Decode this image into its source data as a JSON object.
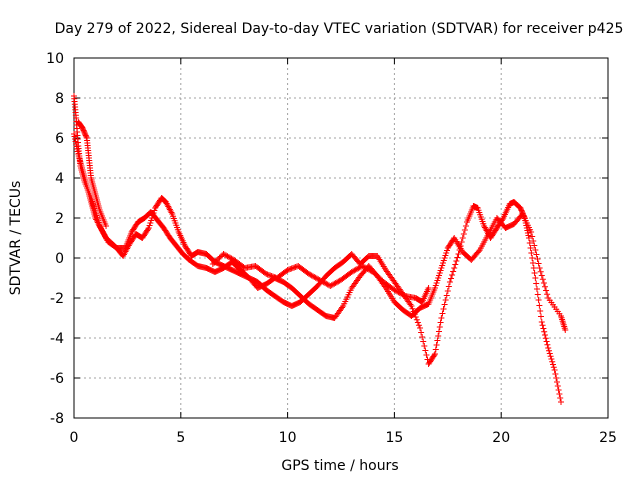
{
  "chart_data": {
    "type": "scatter",
    "title": "Day 279 of 2022, Sidereal Day-to-day VTEC variation (SDTVAR) for receiver p425",
    "xlabel": "GPS time / hours",
    "ylabel": "SDTVAR / TECUs",
    "xlim": [
      0,
      25
    ],
    "ylim": [
      -8,
      10
    ],
    "xticks": [
      0,
      5,
      10,
      15,
      20,
      25
    ],
    "yticks": [
      -8,
      -6,
      -4,
      -2,
      0,
      2,
      4,
      6,
      8,
      10
    ],
    "grid": true,
    "marker": "+",
    "color": "#ff0000",
    "series": [
      {
        "name": "track-a",
        "points": [
          [
            0.0,
            8.1
          ],
          [
            0.1,
            7.0
          ],
          [
            0.2,
            5.6
          ],
          [
            0.3,
            4.6
          ],
          [
            0.5,
            3.8
          ],
          [
            0.8,
            3.0
          ],
          [
            1.0,
            2.3
          ],
          [
            1.2,
            1.6
          ],
          [
            1.5,
            1.0
          ],
          [
            1.8,
            0.7
          ],
          [
            2.0,
            0.5
          ],
          [
            2.3,
            0.1
          ],
          [
            2.6,
            0.7
          ],
          [
            2.9,
            1.2
          ],
          [
            3.2,
            1.0
          ],
          [
            3.5,
            1.5
          ],
          [
            3.8,
            2.5
          ],
          [
            4.1,
            3.0
          ],
          [
            4.3,
            2.8
          ],
          [
            4.6,
            2.2
          ],
          [
            4.9,
            1.3
          ],
          [
            5.2,
            0.6
          ],
          [
            5.5,
            0.1
          ],
          [
            5.8,
            0.3
          ],
          [
            6.2,
            0.2
          ],
          [
            6.6,
            -0.2
          ],
          [
            7.0,
            -0.4
          ],
          [
            7.4,
            -0.6
          ],
          [
            7.8,
            -0.8
          ],
          [
            8.2,
            -1.0
          ],
          [
            8.6,
            -1.2
          ],
          [
            9.0,
            -1.6
          ],
          [
            9.4,
            -1.9
          ],
          [
            9.8,
            -2.2
          ],
          [
            10.2,
            -2.4
          ],
          [
            10.6,
            -2.2
          ],
          [
            11.0,
            -1.8
          ],
          [
            11.4,
            -1.4
          ],
          [
            11.8,
            -0.9
          ],
          [
            12.2,
            -0.5
          ],
          [
            12.6,
            -0.2
          ],
          [
            13.0,
            0.2
          ],
          [
            13.4,
            -0.3
          ],
          [
            13.8,
            0.1
          ],
          [
            14.2,
            0.1
          ],
          [
            14.6,
            -0.6
          ],
          [
            15.0,
            -1.2
          ],
          [
            15.4,
            -1.8
          ],
          [
            15.8,
            -2.4
          ],
          [
            16.2,
            -3.5
          ],
          [
            16.6,
            -5.3
          ],
          [
            16.9,
            -4.8
          ],
          [
            17.2,
            -3.0
          ],
          [
            17.6,
            -1.2
          ],
          [
            18.0,
            0.2
          ],
          [
            18.4,
            1.8
          ],
          [
            18.7,
            2.6
          ],
          [
            18.9,
            2.5
          ],
          [
            19.2,
            1.6
          ],
          [
            19.5,
            1.0
          ],
          [
            19.8,
            1.5
          ],
          [
            20.1,
            2.0
          ],
          [
            20.4,
            2.7
          ],
          [
            20.6,
            2.8
          ],
          [
            20.9,
            2.5
          ],
          [
            21.1,
            2.0
          ],
          [
            21.3,
            1.0
          ],
          [
            21.6,
            -1.0
          ],
          [
            21.9,
            -3.2
          ],
          [
            22.2,
            -4.5
          ],
          [
            22.5,
            -5.6
          ],
          [
            22.8,
            -7.2
          ]
        ]
      },
      {
        "name": "track-b",
        "points": [
          [
            0.0,
            6.2
          ],
          [
            0.2,
            5.2
          ],
          [
            0.4,
            4.4
          ],
          [
            0.6,
            3.6
          ],
          [
            0.8,
            2.8
          ],
          [
            1.0,
            2.0
          ],
          [
            1.3,
            1.4
          ],
          [
            1.6,
            0.8
          ],
          [
            2.0,
            0.5
          ],
          [
            2.4,
            0.5
          ],
          [
            2.7,
            1.3
          ],
          [
            3.0,
            1.8
          ],
          [
            3.3,
            2.0
          ],
          [
            3.6,
            2.3
          ],
          [
            3.9,
            1.9
          ],
          [
            4.2,
            1.5
          ],
          [
            4.5,
            1.0
          ],
          [
            4.8,
            0.6
          ],
          [
            5.1,
            0.2
          ],
          [
            5.4,
            -0.1
          ],
          [
            5.8,
            -0.4
          ],
          [
            6.2,
            -0.5
          ],
          [
            6.6,
            -0.7
          ],
          [
            7.0,
            -0.5
          ],
          [
            7.4,
            -0.2
          ],
          [
            7.8,
            -0.6
          ],
          [
            8.2,
            -1.0
          ],
          [
            8.6,
            -1.5
          ],
          [
            9.0,
            -1.3
          ],
          [
            9.4,
            -1.0
          ],
          [
            9.8,
            -1.2
          ],
          [
            10.2,
            -1.5
          ],
          [
            10.6,
            -1.9
          ],
          [
            11.0,
            -2.3
          ],
          [
            11.4,
            -2.6
          ],
          [
            11.8,
            -2.9
          ],
          [
            12.2,
            -3.0
          ],
          [
            12.6,
            -2.4
          ],
          [
            13.0,
            -1.5
          ],
          [
            13.4,
            -0.9
          ],
          [
            13.8,
            -0.4
          ],
          [
            14.2,
            -0.9
          ],
          [
            14.6,
            -1.5
          ],
          [
            15.0,
            -2.2
          ],
          [
            15.4,
            -2.6
          ],
          [
            15.8,
            -2.9
          ],
          [
            16.2,
            -2.5
          ],
          [
            16.6,
            -2.3
          ],
          [
            16.9,
            -1.5
          ],
          [
            17.2,
            -0.5
          ],
          [
            17.5,
            0.5
          ],
          [
            17.8,
            1.0
          ],
          [
            18.2,
            0.3
          ],
          [
            18.6,
            -0.1
          ],
          [
            19.0,
            0.4
          ],
          [
            19.4,
            1.2
          ],
          [
            19.8,
            2.0
          ],
          [
            20.2,
            1.5
          ],
          [
            20.6,
            1.7
          ],
          [
            21.0,
            2.2
          ],
          [
            21.4,
            1.3
          ],
          [
            21.8,
            -0.5
          ],
          [
            22.2,
            -2.0
          ],
          [
            22.8,
            -2.9
          ],
          [
            23.0,
            -3.6
          ]
        ]
      },
      {
        "name": "track-c",
        "points": [
          [
            0.2,
            6.8
          ],
          [
            0.4,
            6.5
          ],
          [
            0.6,
            6.0
          ],
          [
            0.7,
            5.0
          ],
          [
            0.8,
            4.0
          ],
          [
            1.0,
            3.2
          ],
          [
            1.2,
            2.4
          ],
          [
            1.5,
            1.6
          ],
          [
            6.5,
            -0.3
          ],
          [
            7.0,
            0.2
          ],
          [
            7.5,
            -0.1
          ],
          [
            8.0,
            -0.5
          ],
          [
            8.5,
            -0.4
          ],
          [
            9.0,
            -0.8
          ],
          [
            9.5,
            -1.0
          ],
          [
            10.0,
            -0.6
          ],
          [
            10.5,
            -0.4
          ],
          [
            11.0,
            -0.8
          ],
          [
            11.5,
            -1.1
          ],
          [
            12.0,
            -1.4
          ],
          [
            12.5,
            -1.1
          ],
          [
            13.0,
            -0.7
          ],
          [
            13.5,
            -0.4
          ],
          [
            14.0,
            -0.7
          ],
          [
            14.5,
            -1.2
          ],
          [
            15.0,
            -1.6
          ],
          [
            15.5,
            -1.9
          ],
          [
            16.0,
            -2.0
          ],
          [
            16.3,
            -2.2
          ],
          [
            16.6,
            -1.5
          ]
        ]
      }
    ]
  }
}
